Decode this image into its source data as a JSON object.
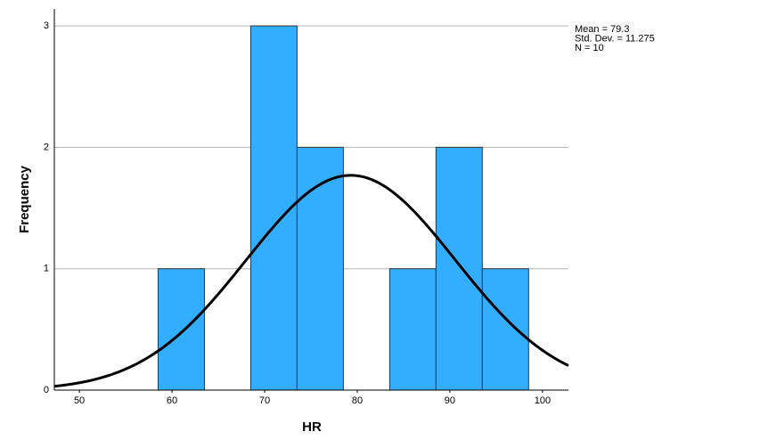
{
  "chart_data": {
    "type": "histogram",
    "xlabel": "HR",
    "ylabel": "Frequency",
    "bins": [
      58.5,
      63.5,
      68.5,
      73.5,
      78.5,
      83.5,
      88.5,
      93.5,
      98.5
    ],
    "values": [
      1,
      0,
      3,
      2,
      0,
      1,
      2,
      1
    ],
    "color": "#33adff",
    "xlim": [
      47.3,
      102.8
    ],
    "xticks": [
      50,
      60,
      70,
      80,
      90,
      100
    ],
    "ylim": [
      0,
      3.14
    ],
    "yticks": [
      0,
      1,
      2,
      3
    ],
    "grid": true,
    "annotations": [
      "Mean = 79.3",
      "Std. Dev. = 11.275",
      "N = 10"
    ],
    "normal_curve": {
      "mean": 79.3,
      "std_dev": 11.275,
      "n": 10
    }
  }
}
